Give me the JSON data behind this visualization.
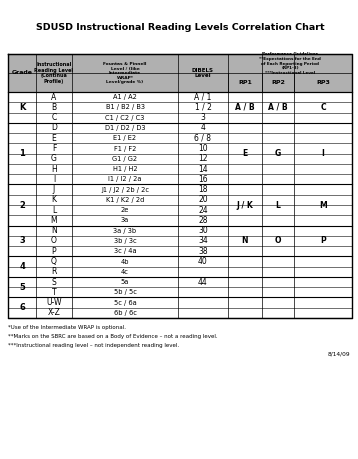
{
  "title": "SDUSD Instructional Reading Levels Correlation Chart",
  "rows": [
    {
      "grade": "K",
      "irl": "A",
      "fp": "A1 / A2",
      "dibels": "A / 1"
    },
    {
      "grade": "",
      "irl": "B",
      "fp": "B1 / B2 / B3",
      "dibels": "1 / 2"
    },
    {
      "grade": "",
      "irl": "C",
      "fp": "C1 / C2 / C3",
      "dibels": "3"
    },
    {
      "grade": "1",
      "irl": "D",
      "fp": "D1 / D2 / D3",
      "dibels": "4"
    },
    {
      "grade": "",
      "irl": "E",
      "fp": "E1 / E2",
      "dibels": "6 / 8"
    },
    {
      "grade": "",
      "irl": "F",
      "fp": "F1 / F2",
      "dibels": "10"
    },
    {
      "grade": "",
      "irl": "G",
      "fp": "G1 / G2",
      "dibels": "12"
    },
    {
      "grade": "",
      "irl": "H",
      "fp": "H1 / H2",
      "dibels": "14"
    },
    {
      "grade": "",
      "irl": "I",
      "fp": "I1 / I2 / 2a",
      "dibels": "16"
    },
    {
      "grade": "2",
      "irl": "J",
      "fp": "J1 / J2 / 2b / 2c",
      "dibels": "18"
    },
    {
      "grade": "",
      "irl": "K",
      "fp": "K1 / K2 / 2d",
      "dibels": "20"
    },
    {
      "grade": "",
      "irl": "L",
      "fp": "2e",
      "dibels": "24"
    },
    {
      "grade": "",
      "irl": "M",
      "fp": "3a",
      "dibels": "28"
    },
    {
      "grade": "3",
      "irl": "N",
      "fp": "3a / 3b",
      "dibels": "30"
    },
    {
      "grade": "",
      "irl": "O",
      "fp": "3b / 3c",
      "dibels": "34"
    },
    {
      "grade": "",
      "irl": "P",
      "fp": "3c / 4a",
      "dibels": "38"
    },
    {
      "grade": "4",
      "irl": "Q",
      "fp": "4b",
      "dibels": "40"
    },
    {
      "grade": "",
      "irl": "R",
      "fp": "4c",
      "dibels": ""
    },
    {
      "grade": "5",
      "irl": "S",
      "fp": "5a",
      "dibels": "44"
    },
    {
      "grade": "",
      "irl": "T",
      "fp": "5b / 5c",
      "dibels": ""
    },
    {
      "grade": "6",
      "irl": "U-W",
      "fp": "5c / 6a",
      "dibels": ""
    },
    {
      "grade": "",
      "irl": "X-Z",
      "fp": "6b / 6c",
      "dibels": ""
    }
  ],
  "grade_spans": [
    {
      "grade": "K",
      "start": 0,
      "end": 2
    },
    {
      "grade": "1",
      "start": 3,
      "end": 8
    },
    {
      "grade": "2",
      "start": 9,
      "end": 12
    },
    {
      "grade": "3",
      "start": 13,
      "end": 15
    },
    {
      "grade": "4",
      "start": 16,
      "end": 17
    },
    {
      "grade": "5",
      "start": 18,
      "end": 19
    },
    {
      "grade": "6",
      "start": 20,
      "end": 21
    }
  ],
  "perf_spans": [
    {
      "rp1": "A / B",
      "rp2": "A / B",
      "rp3": "C",
      "start": 0,
      "end": 2
    },
    {
      "rp1": "E",
      "rp2": "G",
      "rp3": "I",
      "start": 3,
      "end": 8
    },
    {
      "rp1": "J / K",
      "rp2": "L",
      "rp3": "M",
      "start": 9,
      "end": 12
    },
    {
      "rp1": "N",
      "rp2": "O",
      "rp3": "P",
      "start": 13,
      "end": 15
    },
    {
      "rp1": "",
      "rp2": "",
      "rp3": "",
      "start": 16,
      "end": 17
    },
    {
      "rp1": "",
      "rp2": "",
      "rp3": "",
      "start": 18,
      "end": 19
    },
    {
      "rp1": "",
      "rp2": "",
      "rp3": "",
      "start": 20,
      "end": 21
    }
  ],
  "grade_thick_before": [
    0,
    3,
    9,
    13,
    16,
    18,
    20
  ],
  "footnotes": [
    "*Use of the Intermediate WRAP is optional.",
    "**Marks on the SBRC are based on a Body of Evidence – not a reading level.",
    "***Instructional reading level – not independent reading level."
  ],
  "date": "8/14/09"
}
